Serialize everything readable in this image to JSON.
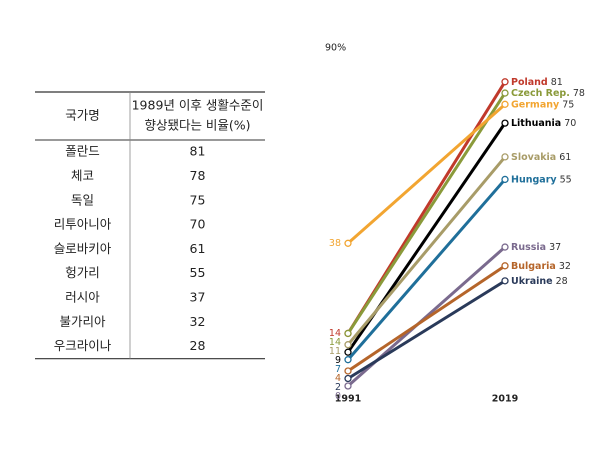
{
  "table": {
    "columns": [
      "국가명",
      [
        "1989년 이후 생활수준이",
        "향상됐다는 비율(%)"
      ]
    ],
    "rows": [
      [
        "폴란드",
        81
      ],
      [
        "체코",
        78
      ],
      [
        "독일",
        75
      ],
      [
        "리투아니아",
        70
      ],
      [
        "슬로바키아",
        61
      ],
      [
        "헝가리",
        55
      ],
      [
        "러시아",
        37
      ],
      [
        "불가리아",
        32
      ],
      [
        "우크라이나",
        28
      ]
    ]
  },
  "chart_data": {
    "type": "slope",
    "x": [
      1991,
      2019
    ],
    "ylim": [
      0,
      90
    ],
    "yticks": [
      {
        "value": 90,
        "label": "90%"
      }
    ],
    "series": [
      {
        "name": "Poland",
        "color": "#c0392b",
        "values": [
          14,
          81
        ]
      },
      {
        "name": "Czech Rep.",
        "color": "#8a9a3a",
        "values": [
          14,
          78
        ]
      },
      {
        "name": "Germany",
        "color": "#f2a531",
        "values": [
          38,
          75
        ]
      },
      {
        "name": "Lithuania",
        "color": "#000000",
        "values": [
          9,
          70
        ]
      },
      {
        "name": "Slovakia",
        "color": "#a89c68",
        "values": [
          11,
          61
        ]
      },
      {
        "name": "Hungary",
        "color": "#1f6f9a",
        "values": [
          7,
          55
        ]
      },
      {
        "name": "Russia",
        "color": "#7a6a8e",
        "values": [
          0,
          37
        ]
      },
      {
        "name": "Bulgaria",
        "color": "#b5652a",
        "values": [
          4,
          32
        ]
      },
      {
        "name": "Ukraine",
        "color": "#2a3a5a",
        "values": [
          2,
          28
        ]
      }
    ]
  }
}
